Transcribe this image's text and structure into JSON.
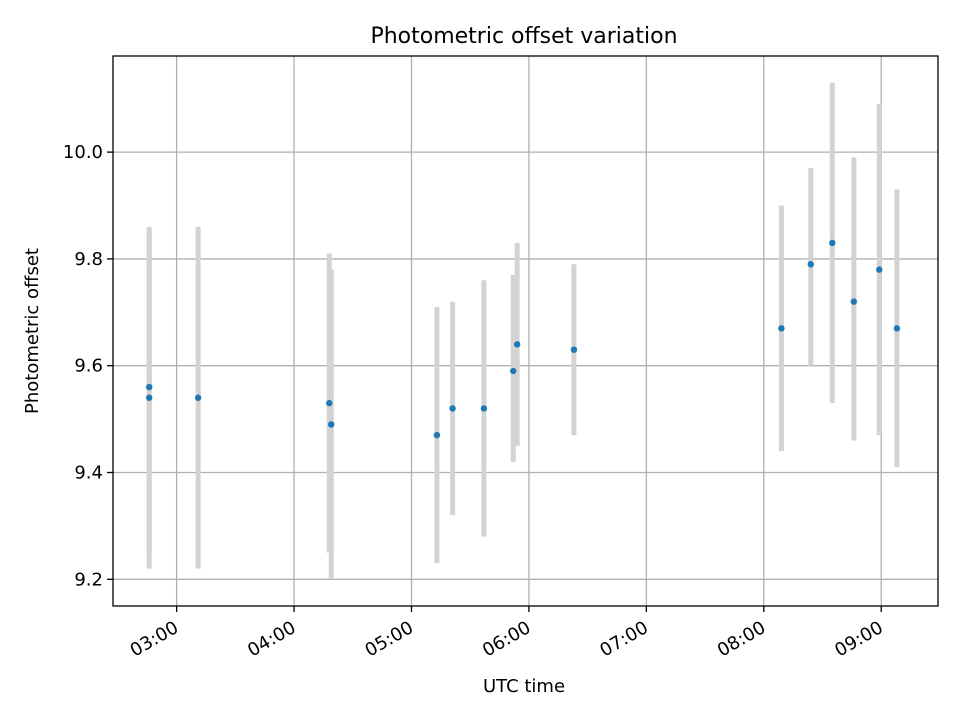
{
  "chart_data": {
    "type": "scatter",
    "title": "Photometric offset variation",
    "xlabel": "UTC time",
    "ylabel": "Photometric offset",
    "x_ticks": [
      "03:00",
      "04:00",
      "05:00",
      "06:00",
      "07:00",
      "08:00",
      "09:00"
    ],
    "y_ticks": [
      "9.2",
      "9.4",
      "9.6",
      "9.8",
      "10.0"
    ],
    "xlim": [
      "02:27:30",
      "09:29:00"
    ],
    "ylim": [
      9.15,
      10.18
    ],
    "grid": true,
    "legend": "none",
    "colors": {
      "point": "#1f77b4",
      "errorbar": "#d3d3d3",
      "grid": "#b0b0b0",
      "axes": "#000000"
    },
    "series": [
      {
        "points": [
          {
            "x": "02:46",
            "y": 9.56,
            "err_low": 9.25,
            "err_high": 9.86
          },
          {
            "x": "02:46",
            "y": 9.54,
            "err_low": 9.22,
            "err_high": 9.85
          },
          {
            "x": "03:11",
            "y": 9.54,
            "err_low": 9.22,
            "err_high": 9.86
          },
          {
            "x": "04:18",
            "y": 9.53,
            "err_low": 9.25,
            "err_high": 9.81
          },
          {
            "x": "04:19",
            "y": 9.49,
            "err_low": 9.2,
            "err_high": 9.78
          },
          {
            "x": "05:13",
            "y": 9.47,
            "err_low": 9.23,
            "err_high": 9.71
          },
          {
            "x": "05:21",
            "y": 9.52,
            "err_low": 9.32,
            "err_high": 9.72
          },
          {
            "x": "05:37",
            "y": 9.52,
            "err_low": 9.28,
            "err_high": 9.76
          },
          {
            "x": "05:52",
            "y": 9.59,
            "err_low": 9.42,
            "err_high": 9.77
          },
          {
            "x": "05:54",
            "y": 9.64,
            "err_low": 9.45,
            "err_high": 9.83
          },
          {
            "x": "06:23",
            "y": 9.63,
            "err_low": 9.47,
            "err_high": 9.79
          },
          {
            "x": "08:09",
            "y": 9.67,
            "err_low": 9.44,
            "err_high": 9.9
          },
          {
            "x": "08:24",
            "y": 9.79,
            "err_low": 9.6,
            "err_high": 9.97
          },
          {
            "x": "08:35",
            "y": 9.83,
            "err_low": 9.53,
            "err_high": 10.13
          },
          {
            "x": "08:46",
            "y": 9.72,
            "err_low": 9.46,
            "err_high": 9.99
          },
          {
            "x": "08:59",
            "y": 9.78,
            "err_low": 9.47,
            "err_high": 10.09
          },
          {
            "x": "09:08",
            "y": 9.67,
            "err_low": 9.41,
            "err_high": 9.93
          }
        ]
      }
    ]
  }
}
